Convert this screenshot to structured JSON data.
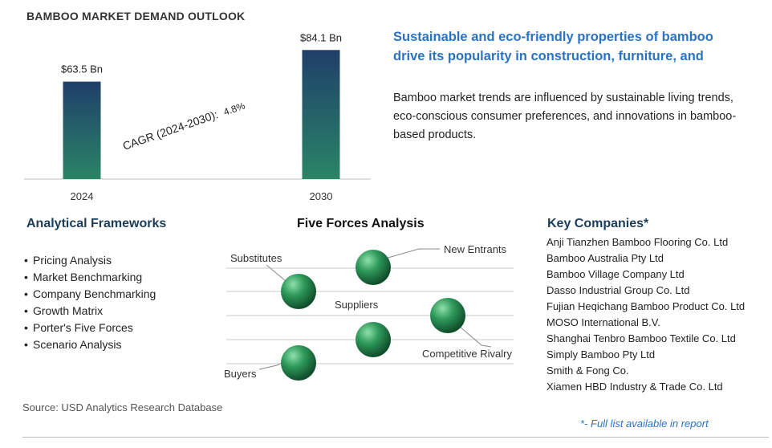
{
  "chart_data": {
    "type": "bar",
    "title": "BAMBOO MARKET DEMAND OUTLOOK",
    "categories": [
      "2024",
      "2030"
    ],
    "values": [
      63.5,
      84.1
    ],
    "value_labels": [
      "$63.5 Bn",
      "$84.1 Bn"
    ],
    "unit": "Bn",
    "ylim": [
      0,
      90
    ],
    "cagr_label": "CAGR (2024-2030):",
    "cagr_value": "4.8%",
    "colors": {
      "bar_top": "#1f3f6a",
      "bar_bottom": "#2a8566",
      "axis": "#bfbfbf"
    }
  },
  "headline": "Sustainable and eco-friendly properties of bamboo drive its popularity in construction, furniture, and",
  "summary": "Bamboo market trends are influenced by sustainable living trends, eco-conscious consumer preferences, and innovations in bamboo-based products.",
  "frameworks": {
    "title": "Analytical Frameworks",
    "items": [
      "Pricing Analysis",
      "Market Benchmarking",
      "Company Benchmarking",
      "Growth Matrix",
      "Porter's Five Forces",
      "Scenario Analysis"
    ]
  },
  "five_forces": {
    "title": "Five Forces Analysis",
    "labels": {
      "substitutes": "Substitutes",
      "new_entrants": "New Entrants",
      "suppliers": "Suppliers",
      "competitive_rivalry": "Competitive Rivalry",
      "buyers": "Buyers"
    },
    "sphere_colors": {
      "light": "#8fe0a8",
      "mid": "#2e9a5a",
      "dark": "#114d2b"
    }
  },
  "companies": {
    "title": "Key Companies*",
    "items": [
      "Anji Tianzhen Bamboo Flooring Co. Ltd",
      "Bamboo Australia Pty Ltd",
      "Bamboo Village Company Ltd",
      "Dasso Industrial Group Co. Ltd",
      "Fujian Heqichang Bamboo Product Co. Ltd",
      "MOSO International B.V.",
      "Shanghai Tenbro Bamboo Textile Co. Ltd",
      "Simply Bamboo Pty Ltd",
      "Smith & Fong Co.",
      "Xiamen HBD Industry & Trade Co. Ltd"
    ],
    "note": "*- Full list available in report"
  },
  "source": "Source: USD Analytics Research Database"
}
